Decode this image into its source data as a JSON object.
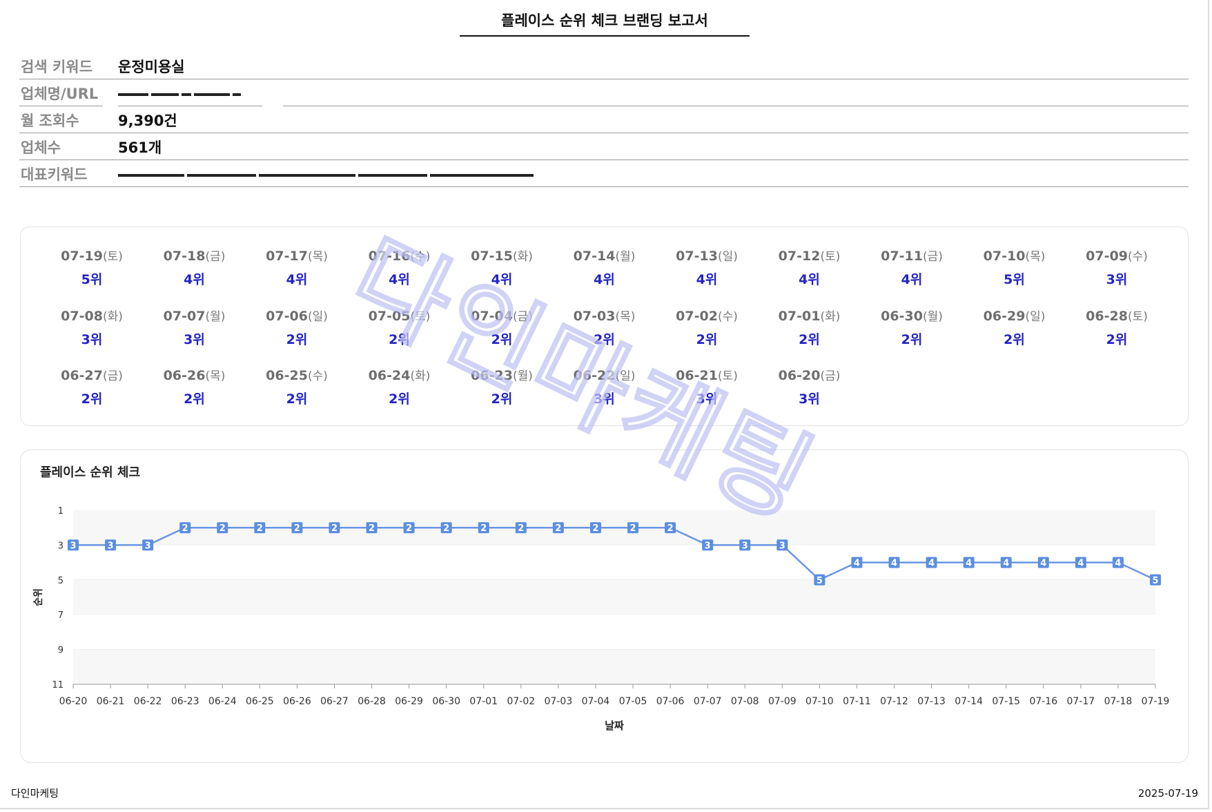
{
  "report": {
    "title": "플레이스 순위 체크 브랜딩 보고서"
  },
  "info": {
    "keyword_label": "검색 키워드",
    "keyword_value": "운정미용실",
    "business_label": "업체명/URL",
    "monthly_label": "월 조회수",
    "monthly_value": "9,390건",
    "count_label": "업체수",
    "count_value": "561개",
    "rep_label": "대표키워드"
  },
  "ranks": [
    {
      "date": "07-19",
      "dow": "(토)",
      "rank": "5위"
    },
    {
      "date": "07-18",
      "dow": "(금)",
      "rank": "4위"
    },
    {
      "date": "07-17",
      "dow": "(목)",
      "rank": "4위"
    },
    {
      "date": "07-16",
      "dow": "(수)",
      "rank": "4위"
    },
    {
      "date": "07-15",
      "dow": "(화)",
      "rank": "4위"
    },
    {
      "date": "07-14",
      "dow": "(월)",
      "rank": "4위"
    },
    {
      "date": "07-13",
      "dow": "(일)",
      "rank": "4위"
    },
    {
      "date": "07-12",
      "dow": "(토)",
      "rank": "4위"
    },
    {
      "date": "07-11",
      "dow": "(금)",
      "rank": "4위"
    },
    {
      "date": "07-10",
      "dow": "(목)",
      "rank": "5위"
    },
    {
      "date": "07-09",
      "dow": "(수)",
      "rank": "3위"
    },
    {
      "date": "07-08",
      "dow": "(화)",
      "rank": "3위"
    },
    {
      "date": "07-07",
      "dow": "(월)",
      "rank": "3위"
    },
    {
      "date": "07-06",
      "dow": "(일)",
      "rank": "2위"
    },
    {
      "date": "07-05",
      "dow": "(토)",
      "rank": "2위"
    },
    {
      "date": "07-04",
      "dow": "(금)",
      "rank": "2위"
    },
    {
      "date": "07-03",
      "dow": "(목)",
      "rank": "2위"
    },
    {
      "date": "07-02",
      "dow": "(수)",
      "rank": "2위"
    },
    {
      "date": "07-01",
      "dow": "(화)",
      "rank": "2위"
    },
    {
      "date": "06-30",
      "dow": "(월)",
      "rank": "2위"
    },
    {
      "date": "06-29",
      "dow": "(일)",
      "rank": "2위"
    },
    {
      "date": "06-28",
      "dow": "(토)",
      "rank": "2위"
    },
    {
      "date": "06-27",
      "dow": "(금)",
      "rank": "2위"
    },
    {
      "date": "06-26",
      "dow": "(목)",
      "rank": "2위"
    },
    {
      "date": "06-25",
      "dow": "(수)",
      "rank": "2위"
    },
    {
      "date": "06-24",
      "dow": "(화)",
      "rank": "2위"
    },
    {
      "date": "06-23",
      "dow": "(월)",
      "rank": "2위"
    },
    {
      "date": "06-22",
      "dow": "(일)",
      "rank": "3위"
    },
    {
      "date": "06-21",
      "dow": "(토)",
      "rank": "3위"
    },
    {
      "date": "06-20",
      "dow": "(금)",
      "rank": "3위"
    }
  ],
  "chart_data": {
    "type": "line",
    "title": "플레이스 순위 체크",
    "xlabel": "날짜",
    "ylabel": "순위",
    "ylim": [
      11,
      1
    ],
    "y_inverted": true,
    "yticks": [
      1,
      3,
      5,
      7,
      9,
      11
    ],
    "grid": "horizontal bands",
    "line_color": "#6a95e0",
    "point_color": "#5b8ee0",
    "x": [
      "06-20",
      "06-21",
      "06-22",
      "06-23",
      "06-24",
      "06-25",
      "06-26",
      "06-27",
      "06-28",
      "06-29",
      "06-30",
      "07-01",
      "07-02",
      "07-03",
      "07-04",
      "07-05",
      "07-06",
      "07-07",
      "07-08",
      "07-09",
      "07-10",
      "07-11",
      "07-12",
      "07-13",
      "07-14",
      "07-15",
      "07-16",
      "07-17",
      "07-18",
      "07-19"
    ],
    "values": [
      3,
      3,
      3,
      2,
      2,
      2,
      2,
      2,
      2,
      2,
      2,
      2,
      2,
      2,
      2,
      2,
      2,
      3,
      3,
      3,
      5,
      4,
      4,
      4,
      4,
      4,
      4,
      4,
      4,
      5
    ]
  },
  "watermark": "다인마케팅",
  "footer": {
    "brand": "다인마케팅",
    "date": "2025-07-19"
  }
}
